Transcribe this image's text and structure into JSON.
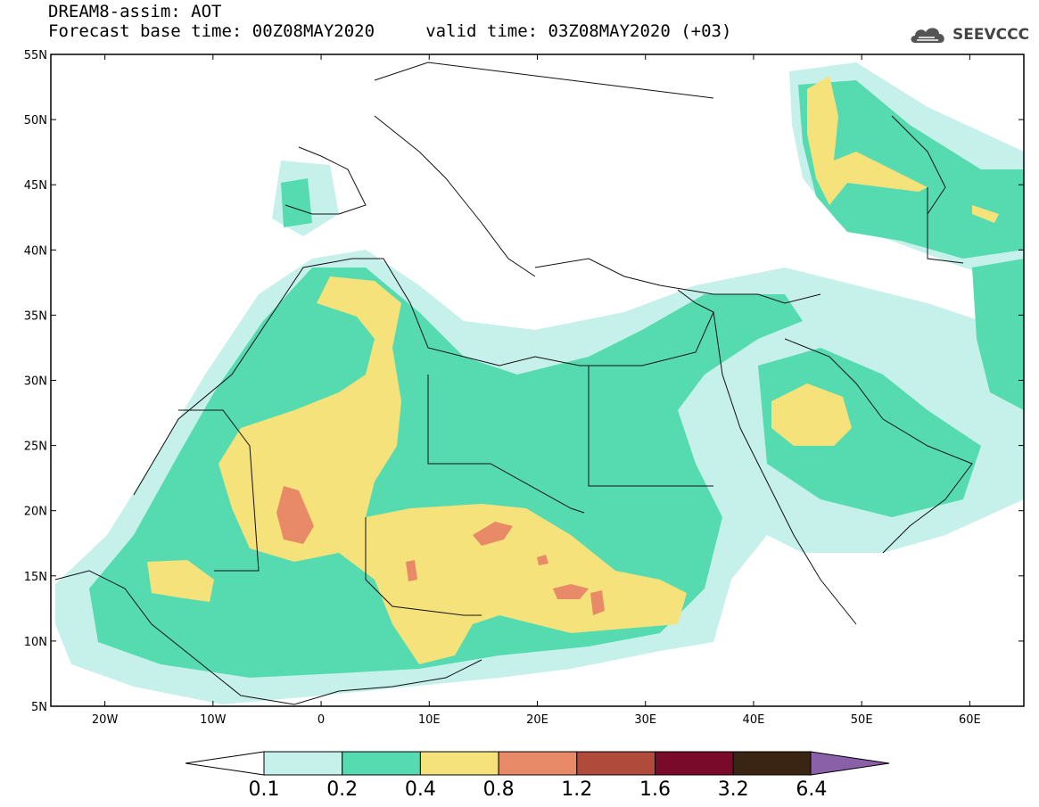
{
  "header": {
    "title_line1": "DREAM8-assim: AOT",
    "title_line2": "Forecast base time: 00Z08MAY2020     valid time: 03Z08MAY2020 (+03)"
  },
  "logo": {
    "text": "SEEVCCC",
    "icon": "cloud-icon"
  },
  "map": {
    "lat_labels": [
      "55N",
      "50N",
      "45N",
      "40N",
      "35N",
      "30N",
      "25N",
      "20N",
      "15N",
      "10N",
      "5N"
    ],
    "lon_labels": [
      "20W",
      "10W",
      "0",
      "10E",
      "20E",
      "30E",
      "40E",
      "50E",
      "60E"
    ],
    "lat_range": [
      5,
      55
    ],
    "lon_range": [
      -25,
      65
    ]
  },
  "colorbar": {
    "labels": [
      "0.1",
      "0.2",
      "0.4",
      "0.8",
      "1.2",
      "1.6",
      "3.2",
      "6.4"
    ],
    "colors": [
      "#c6f0ea",
      "#56dbb0",
      "#f5e27a",
      "#e88a68",
      "#b04a3a",
      "#7a0a2a",
      "#3a2414",
      "#8a60a8"
    ]
  },
  "colors": {
    "low": "#c6f0ea",
    "mid": "#56dbb0",
    "high": "#f5e27a",
    "veryhigh": "#e88a68"
  }
}
